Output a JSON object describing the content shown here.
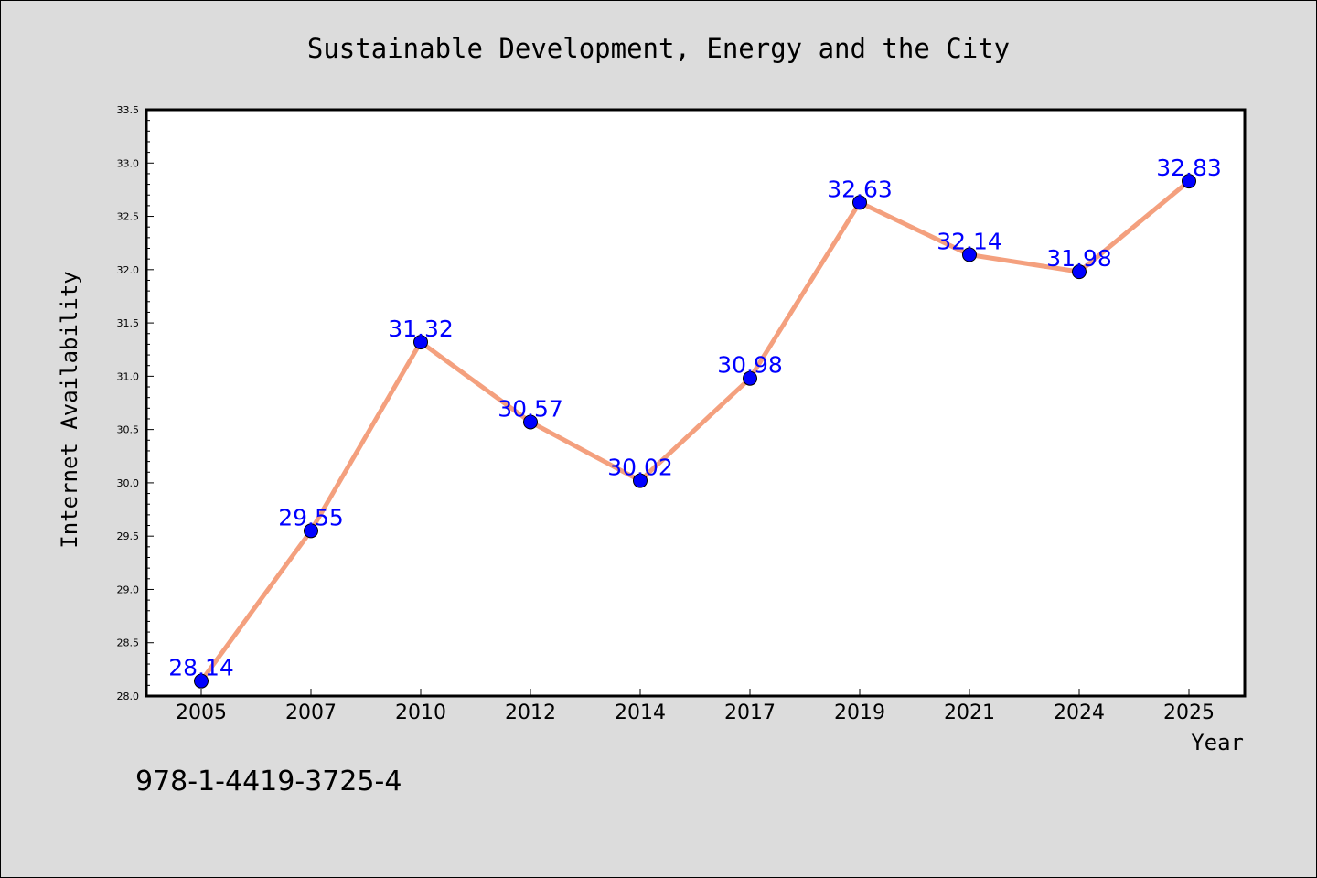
{
  "colors": {
    "background": "#dcdcdc",
    "plot_background": "#ffffff",
    "line": "#f4a07e",
    "marker": "#0000ff",
    "data_label": "#0000ff"
  },
  "footnote": "978-1-4419-3725-4",
  "chart_data": {
    "type": "line",
    "title": "Sustainable Development, Energy and the City",
    "xlabel": "Year",
    "ylabel": "Internet Availability",
    "categories": [
      "2005",
      "2007",
      "2010",
      "2012",
      "2014",
      "2017",
      "2019",
      "2021",
      "2024",
      "2025"
    ],
    "values": [
      28.14,
      29.55,
      31.32,
      30.57,
      30.02,
      30.98,
      32.63,
      32.14,
      31.98,
      32.83
    ],
    "data_labels": [
      "28.14",
      "29.55",
      "31.32",
      "30.57",
      "30.02",
      "30.98",
      "32.63",
      "32.14",
      "31.98",
      "32.83"
    ],
    "ylim": [
      28.0,
      33.5
    ],
    "yticks": [
      "28.0",
      "28.5",
      "29.0",
      "29.5",
      "30.0",
      "30.5",
      "31.0",
      "31.5",
      "32.0",
      "32.5",
      "33.0",
      "33.5"
    ],
    "grid": false,
    "legend": "none"
  }
}
